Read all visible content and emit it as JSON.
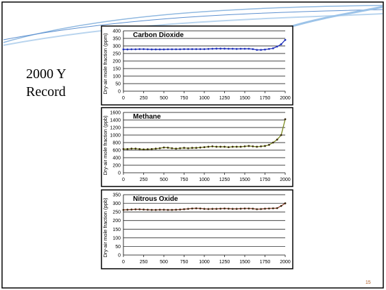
{
  "slide": {
    "title_lines": [
      "2000 Y",
      "Record"
    ],
    "page_number": "15"
  },
  "chart_data": [
    {
      "type": "line",
      "title": "Carbon Dioxide",
      "y_label": "Dry-air mole fraction (ppm)",
      "x": [
        0,
        50,
        100,
        150,
        200,
        250,
        300,
        350,
        400,
        450,
        500,
        550,
        600,
        650,
        700,
        750,
        800,
        850,
        900,
        950,
        1000,
        1050,
        1100,
        1150,
        1200,
        1250,
        1300,
        1350,
        1400,
        1450,
        1500,
        1550,
        1600,
        1650,
        1700,
        1750,
        1800,
        1850,
        1900,
        1950,
        2000
      ],
      "series": [
        {
          "name": "Carbon Dioxide",
          "color": "#2233bb",
          "values": [
            277,
            277,
            278,
            278,
            279,
            279,
            278,
            277,
            277,
            277,
            277,
            278,
            278,
            278,
            278,
            279,
            279,
            279,
            279,
            279,
            279,
            280,
            281,
            282,
            282,
            282,
            281,
            281,
            280,
            281,
            281,
            281,
            279,
            274,
            274,
            276,
            280,
            284,
            296,
            311,
            340
          ]
        }
      ],
      "xlim": [
        0,
        2000
      ],
      "xticks": [
        0,
        250,
        500,
        750,
        1000,
        1250,
        1500,
        1750,
        2000
      ],
      "ylim": [
        0,
        400
      ],
      "yticks": [
        0,
        50,
        100,
        150,
        200,
        250,
        300,
        350,
        400
      ],
      "grid": true
    },
    {
      "type": "line",
      "title": "Methane",
      "y_label": "Dry-air mole fraction (ppb)",
      "x": [
        0,
        50,
        100,
        150,
        200,
        250,
        300,
        350,
        400,
        450,
        500,
        550,
        600,
        650,
        700,
        750,
        800,
        850,
        900,
        950,
        1000,
        1050,
        1100,
        1150,
        1200,
        1250,
        1300,
        1350,
        1400,
        1450,
        1500,
        1550,
        1600,
        1650,
        1700,
        1750,
        1800,
        1850,
        1900,
        1950,
        2000
      ],
      "series": [
        {
          "name": "Methane",
          "color": "#7a8a1e",
          "values": [
            630,
            630,
            640,
            640,
            630,
            620,
            625,
            630,
            640,
            650,
            670,
            665,
            650,
            640,
            650,
            660,
            650,
            660,
            660,
            670,
            680,
            690,
            700,
            690,
            690,
            690,
            680,
            690,
            690,
            690,
            700,
            710,
            700,
            690,
            700,
            710,
            740,
            800,
            880,
            1000,
            1420
          ]
        }
      ],
      "xlim": [
        0,
        2000
      ],
      "xticks": [
        0,
        250,
        500,
        750,
        1000,
        1250,
        1500,
        1750,
        2000
      ],
      "ylim": [
        0,
        1600
      ],
      "yticks": [
        0,
        200,
        400,
        600,
        800,
        1000,
        1200,
        1400,
        1600
      ],
      "grid": true
    },
    {
      "type": "line",
      "title": "Nitrous Oxide",
      "y_label": "Dry-air mole fraction (ppb)",
      "x": [
        0,
        50,
        100,
        150,
        200,
        250,
        300,
        350,
        400,
        450,
        500,
        550,
        600,
        650,
        700,
        750,
        800,
        850,
        900,
        950,
        1000,
        1050,
        1100,
        1150,
        1200,
        1250,
        1300,
        1350,
        1400,
        1450,
        1500,
        1550,
        1600,
        1650,
        1700,
        1750,
        1800,
        1850,
        1900,
        1950,
        2000
      ],
      "series": [
        {
          "name": "Nitrous Oxide",
          "color": "#8b3a2a",
          "values": [
            262,
            263,
            264,
            265,
            265,
            264,
            263,
            262,
            262,
            263,
            263,
            262,
            262,
            263,
            264,
            266,
            268,
            270,
            271,
            270,
            268,
            267,
            268,
            268,
            269,
            270,
            269,
            268,
            268,
            269,
            270,
            270,
            269,
            266,
            267,
            269,
            270,
            271,
            272,
            285,
            300
          ]
        }
      ],
      "xlim": [
        0,
        2000
      ],
      "xticks": [
        0,
        250,
        500,
        750,
        1000,
        1250,
        1500,
        1750,
        2000
      ],
      "ylim": [
        0,
        350
      ],
      "yticks": [
        0,
        50,
        100,
        150,
        200,
        250,
        300,
        350
      ],
      "grid": true
    }
  ]
}
